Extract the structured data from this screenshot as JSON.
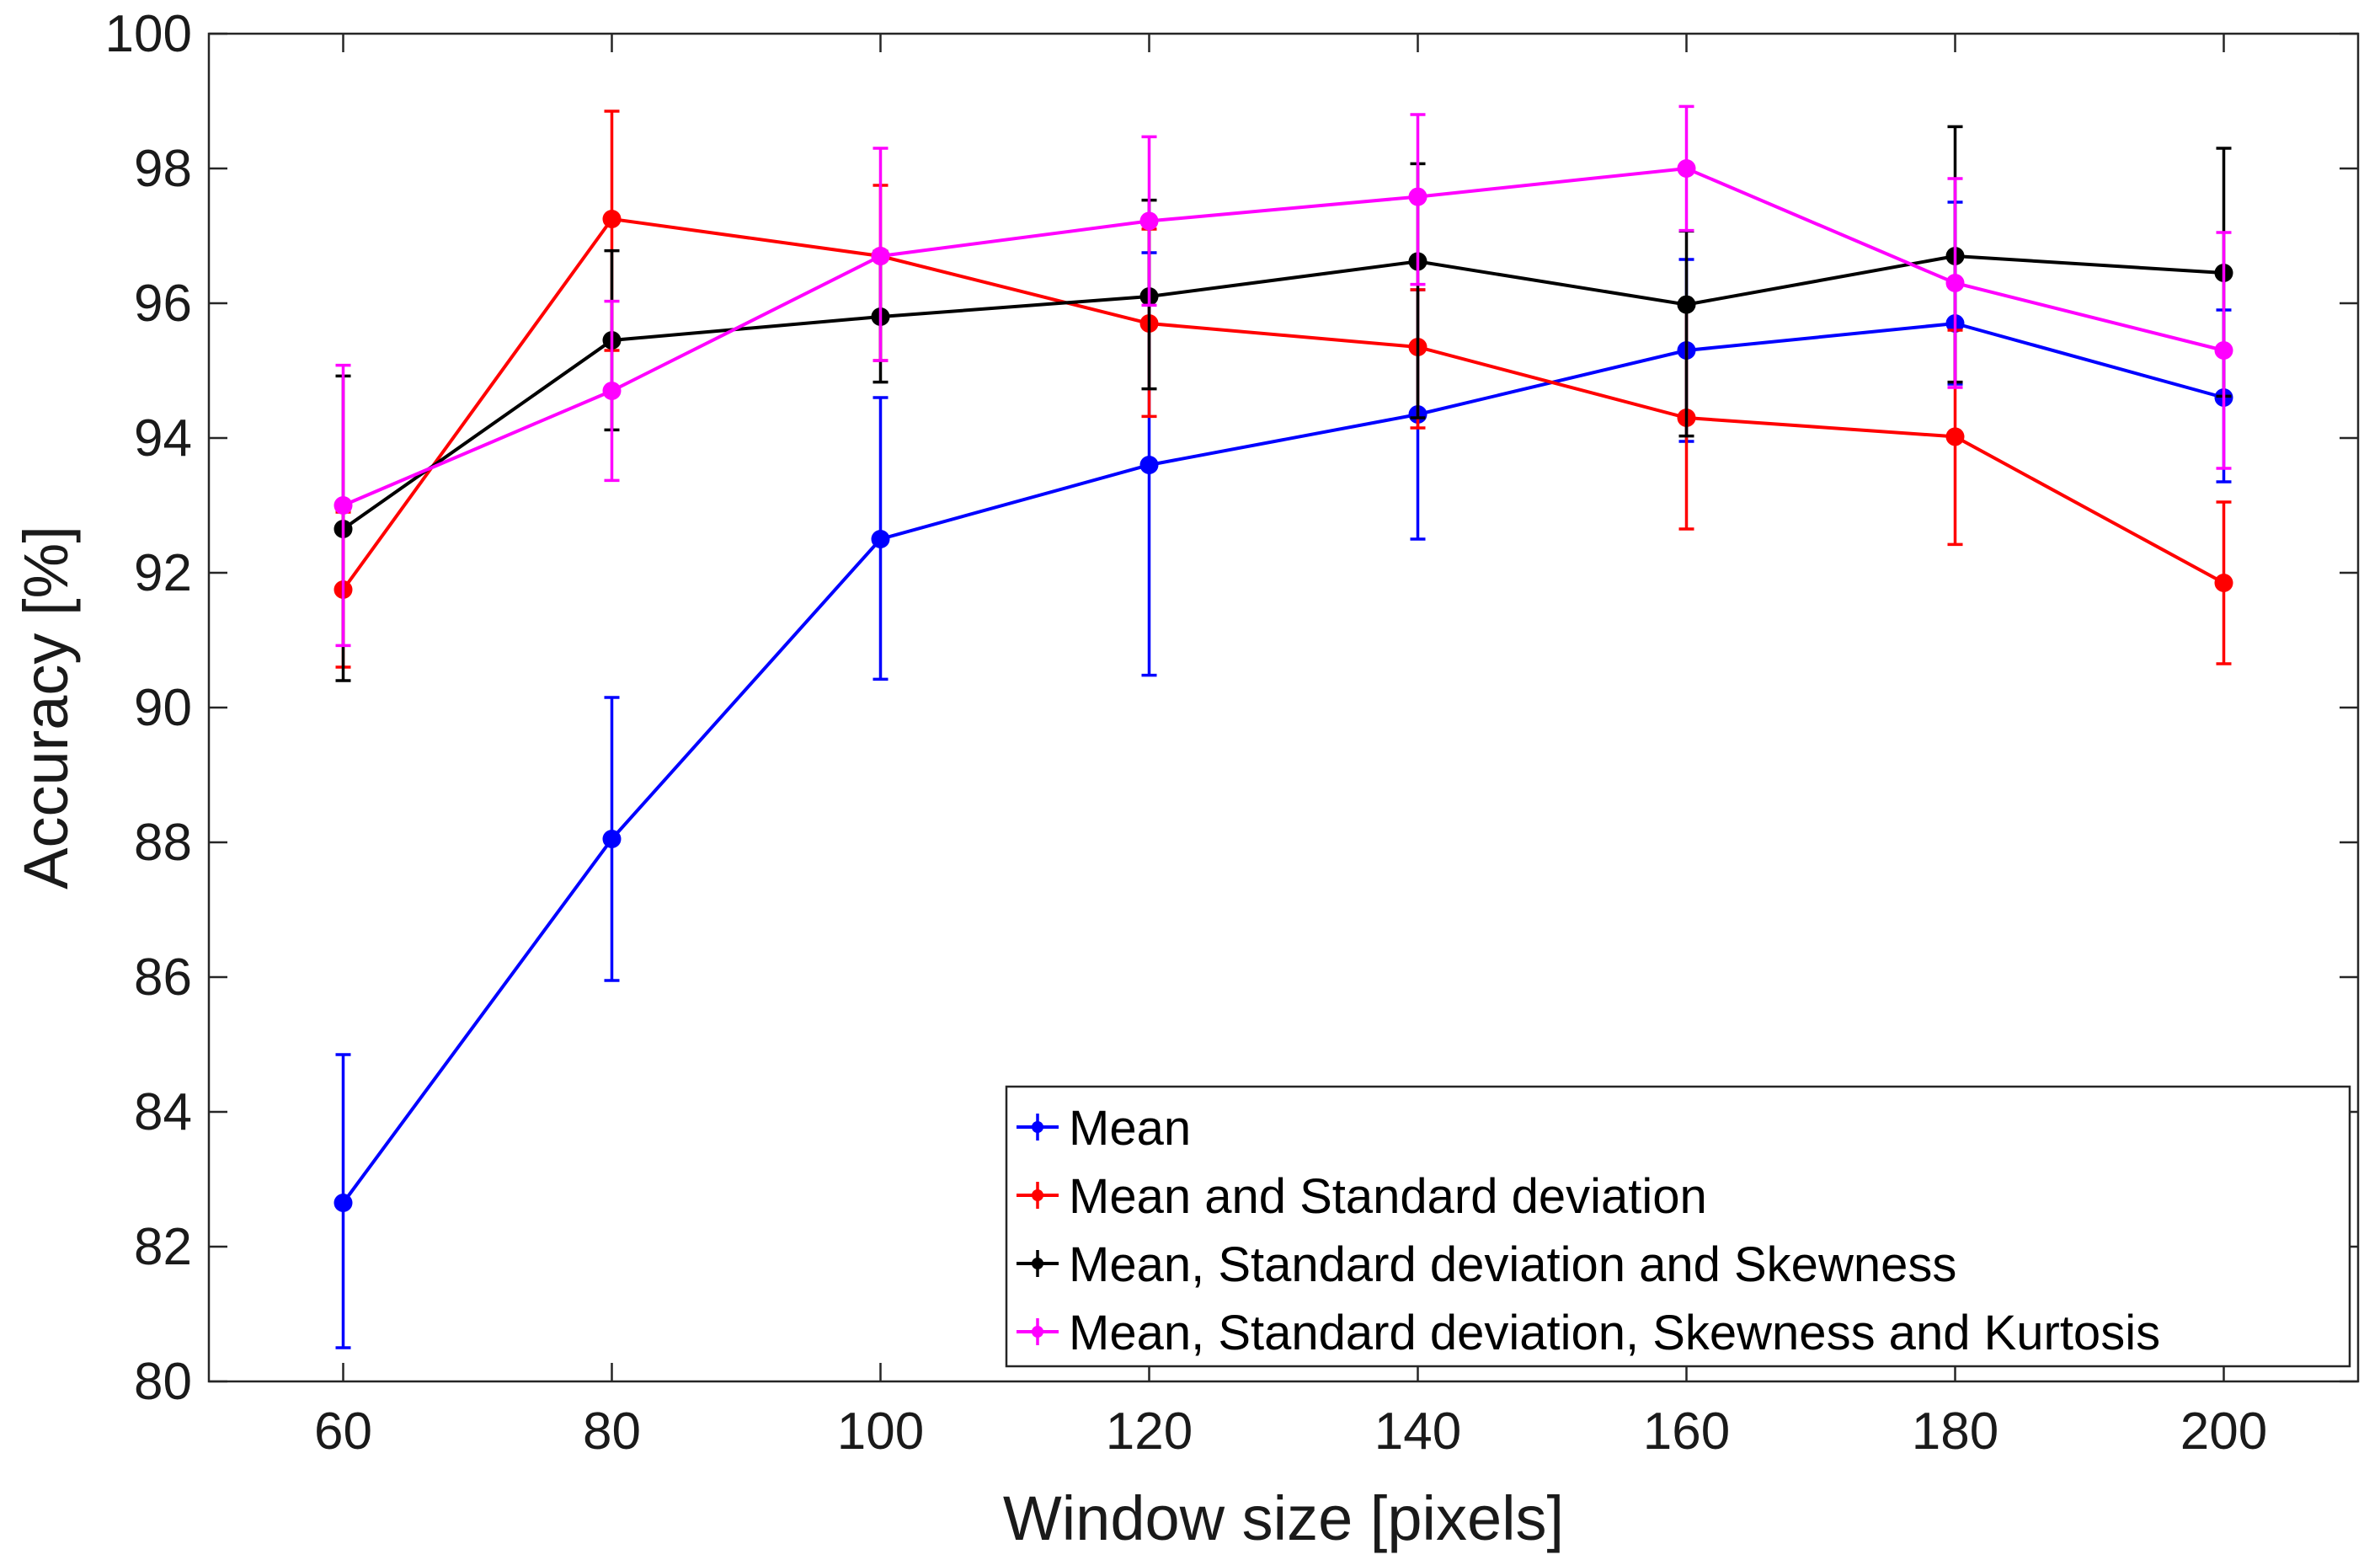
{
  "chart_data": {
    "type": "line",
    "title": "",
    "xlabel": "Window size [pixels]",
    "ylabel": "Accuracy [%]",
    "xlim": [
      50,
      210
    ],
    "ylim": [
      80,
      100
    ],
    "xticks": [
      60,
      80,
      100,
      120,
      140,
      160,
      180,
      200
    ],
    "yticks": [
      80,
      82,
      84,
      86,
      88,
      90,
      92,
      94,
      96,
      98,
      100
    ],
    "grid": false,
    "legend_position": "bottom-right",
    "x": [
      60,
      80,
      100,
      120,
      140,
      160,
      180,
      200
    ],
    "series": [
      {
        "name": "Mean",
        "color": "#0000ff",
        "values": [
          82.65,
          88.05,
          92.5,
          93.6,
          94.35,
          95.3,
          95.7,
          94.6
        ],
        "err_low": [
          80.5,
          85.95,
          90.42,
          90.48,
          92.5,
          93.95,
          94.8,
          93.35
        ],
        "err_high": [
          84.85,
          90.15,
          94.6,
          96.75,
          96.2,
          96.65,
          97.5,
          95.9
        ]
      },
      {
        "name": "Mean and Standard deviation",
        "color": "#ff0000",
        "values": [
          91.75,
          97.25,
          96.7,
          95.7,
          95.35,
          94.3,
          94.02,
          91.85
        ],
        "err_low": [
          90.6,
          95.3,
          95.15,
          94.32,
          94.15,
          92.65,
          92.42,
          90.65
        ],
        "err_high": [
          92.9,
          98.85,
          97.75,
          97.1,
          96.2,
          95.95,
          95.6,
          93.05
        ]
      },
      {
        "name": "Mean, Standard deviation and Skewness",
        "color": "#000000",
        "values": [
          92.65,
          95.45,
          95.8,
          96.1,
          96.62,
          95.98,
          96.7,
          96.45
        ],
        "err_low": [
          90.4,
          94.12,
          94.83,
          94.73,
          94.3,
          94.03,
          94.83,
          94.62
        ],
        "err_high": [
          94.92,
          96.78,
          96.77,
          97.53,
          98.07,
          97.07,
          98.62,
          98.3
        ]
      },
      {
        "name": "Mean, Standard deviation, Skewness and Kurtosis",
        "color": "#ff00ff",
        "values": [
          93.0,
          94.7,
          96.7,
          97.22,
          97.58,
          98.0,
          96.3,
          95.3
        ],
        "err_low": [
          90.92,
          93.37,
          95.15,
          95.97,
          96.28,
          97.08,
          94.75,
          93.55
        ],
        "err_high": [
          95.08,
          96.03,
          98.3,
          98.47,
          98.8,
          98.92,
          97.85,
          97.05
        ]
      }
    ]
  }
}
